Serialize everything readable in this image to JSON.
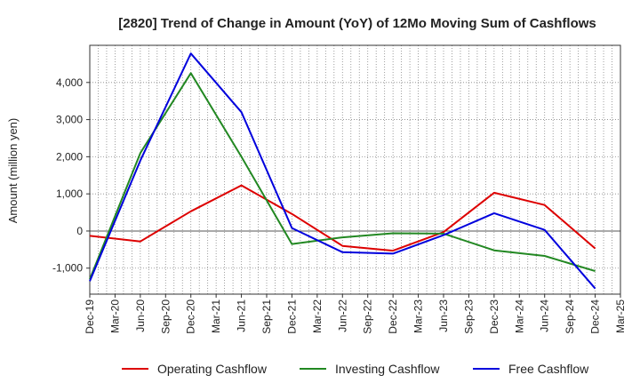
{
  "chart_data": {
    "type": "line",
    "title": "[2820]  Trend of Change in Amount (YoY) of 12Mo Moving Sum of Cashflows",
    "xlabel": "",
    "ylabel": "Amount (million yen)",
    "ylim": [
      -1700,
      5000
    ],
    "yticks": [
      -1000,
      0,
      1000,
      2000,
      3000,
      4000
    ],
    "ytick_labels": [
      "-1,000",
      "0",
      "1,000",
      "2,000",
      "3,000",
      "4,000"
    ],
    "categories": [
      "Dec-19",
      "Mar-20",
      "Jun-20",
      "Sep-20",
      "Dec-20",
      "Mar-21",
      "Jun-21",
      "Sep-21",
      "Dec-21",
      "Mar-22",
      "Jun-22",
      "Sep-22",
      "Dec-22",
      "Mar-23",
      "Jun-23",
      "Sep-23",
      "Dec-23",
      "Mar-24",
      "Jun-24",
      "Sep-24",
      "Dec-24",
      "Mar-25"
    ],
    "series": [
      {
        "name": "Operating Cashflow",
        "color": "#dd0000",
        "values": [
          -130,
          null,
          -280,
          null,
          530,
          null,
          1230,
          null,
          460,
          null,
          -400,
          null,
          -530,
          null,
          -30,
          null,
          1030,
          null,
          700,
          null,
          -470,
          null
        ]
      },
      {
        "name": "Investing Cashflow",
        "color": "#228822",
        "values": [
          -1300,
          null,
          2100,
          null,
          4250,
          null,
          2000,
          null,
          -350,
          null,
          -170,
          null,
          -60,
          null,
          -70,
          null,
          -520,
          null,
          -670,
          null,
          -1080,
          null
        ]
      },
      {
        "name": "Free Cashflow",
        "color": "#0000dd",
        "values": [
          -1350,
          null,
          1900,
          null,
          4780,
          null,
          3200,
          null,
          80,
          null,
          -570,
          null,
          -610,
          null,
          -110,
          null,
          480,
          null,
          30,
          null,
          -1550,
          null
        ]
      }
    ],
    "grid": true,
    "legend": "bottom"
  }
}
